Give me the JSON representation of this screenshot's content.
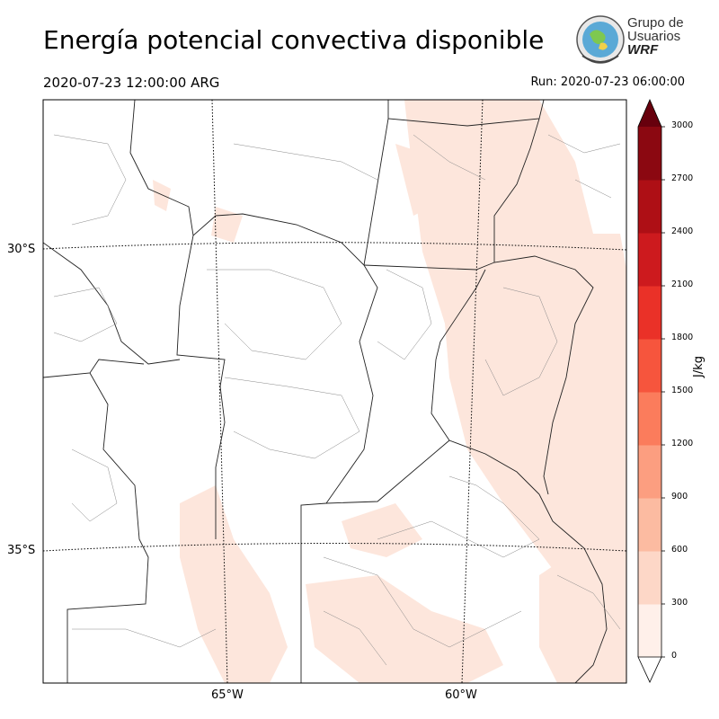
{
  "header": {
    "title": "Energía potencial convectiva disponible",
    "valid_time": "2020-07-23 12:00:00 ARG",
    "run_time": "Run: 2020-07-23 06:00:00"
  },
  "logo": {
    "line1": "Grupo de",
    "line2": "Usuarios",
    "line3": "WRF"
  },
  "map": {
    "lat_labels": [
      "30°S",
      "35°S"
    ],
    "lon_labels": [
      "65°W",
      "60°W"
    ],
    "fill_color": "#fde6dc"
  },
  "colorbar": {
    "unit": "J/kg",
    "ticks": [
      "0",
      "300",
      "600",
      "900",
      "1200",
      "1500",
      "1800",
      "2100",
      "2400",
      "2700",
      "3000"
    ],
    "colors": [
      "#fff0ea",
      "#fdd7c7",
      "#fcbba1",
      "#fc9e80",
      "#fb7c5c",
      "#f6553d",
      "#ea3128",
      "#cd1a1e",
      "#ae0f15",
      "#8b0811"
    ],
    "over_color": "#67000d"
  }
}
